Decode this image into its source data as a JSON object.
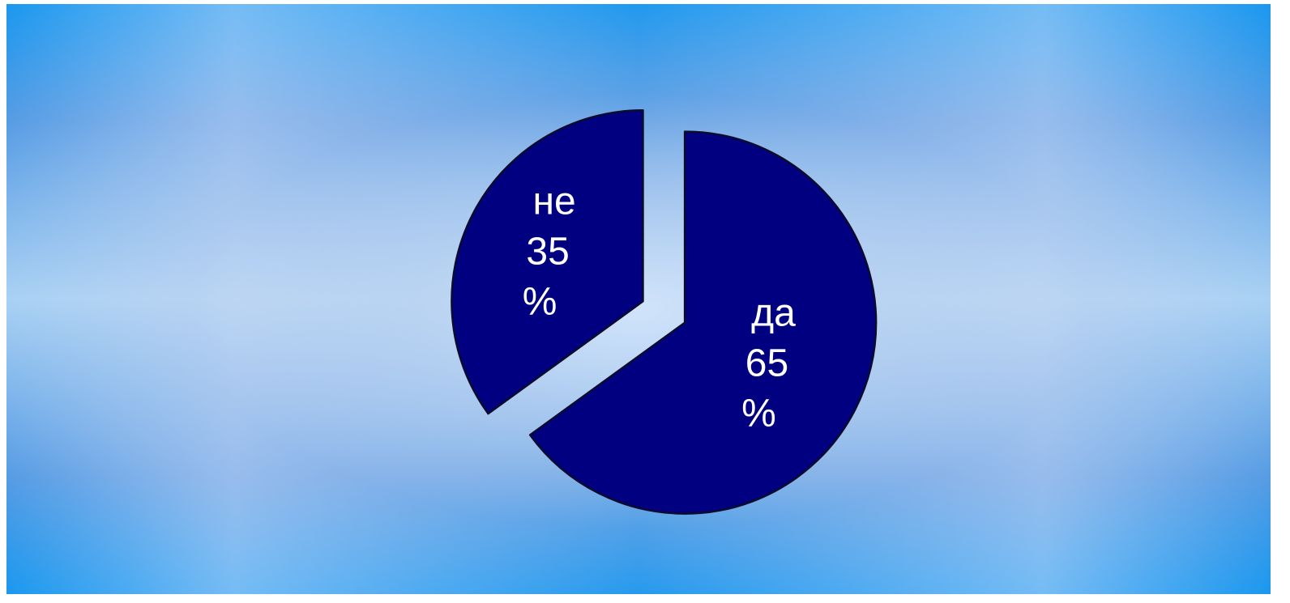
{
  "chart_data": {
    "type": "pie",
    "categories": [
      "не",
      "да"
    ],
    "values": [
      35,
      65
    ],
    "value_labels": [
      "35",
      "65"
    ],
    "unit": "%",
    "title": "",
    "legend": "none",
    "colors": {
      "slice": "#000080",
      "outline": "#0b0b2e",
      "label": "#ffffff",
      "background_edge": "#0e64cc",
      "background_center": "#cfe0f6"
    }
  }
}
